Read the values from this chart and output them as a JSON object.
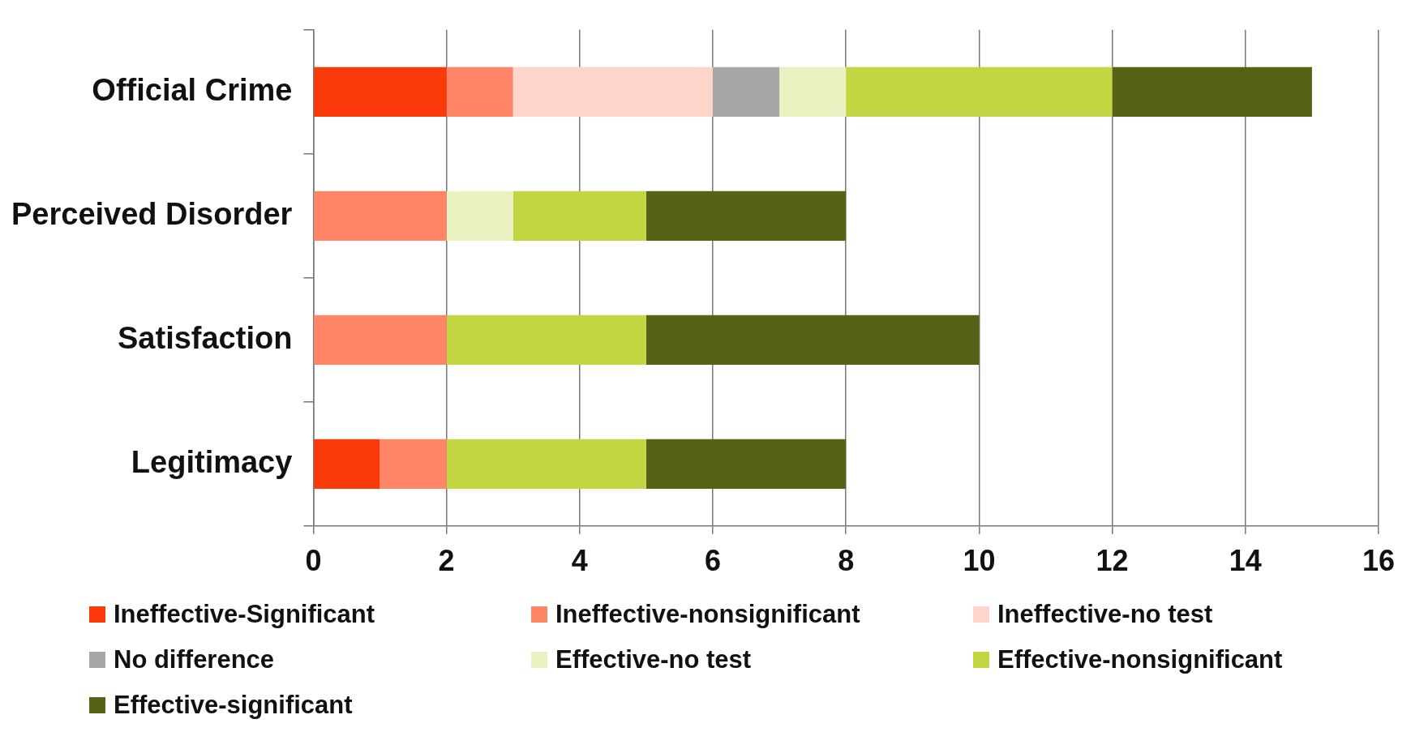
{
  "chart_data": {
    "type": "bar",
    "orientation": "horizontal",
    "stacked": true,
    "categories": [
      "Official Crime",
      "Perceived Disorder",
      "Satisfaction",
      "Legitimacy"
    ],
    "series": [
      {
        "name": "Ineffective-Significant",
        "color": "#fa3a0a",
        "values": [
          2,
          null,
          null,
          1
        ]
      },
      {
        "name": "Ineffective-nonsignificant",
        "color": "#ff8566",
        "values": [
          1,
          2,
          2,
          1
        ]
      },
      {
        "name": "Ineffective-no test",
        "color": "#ffd5cb",
        "values": [
          3,
          null,
          null,
          null
        ]
      },
      {
        "name": "No difference",
        "color": "#a6a6a6",
        "values": [
          1,
          null,
          null,
          null
        ]
      },
      {
        "name": "Effective-no test",
        "color": "#e9f2c0",
        "values": [
          1,
          1,
          null,
          null
        ]
      },
      {
        "name": "Effective-nonsignificant",
        "color": "#c3d641",
        "values": [
          4,
          2,
          3,
          3
        ]
      },
      {
        "name": "Effective-significant",
        "color": "#566316",
        "values": [
          3,
          3,
          5,
          3
        ]
      }
    ],
    "xlim": [
      0,
      16
    ],
    "xticks": [
      0,
      2,
      4,
      6,
      8,
      10,
      12,
      14,
      16
    ],
    "grid": "x",
    "legend": "bottom"
  }
}
